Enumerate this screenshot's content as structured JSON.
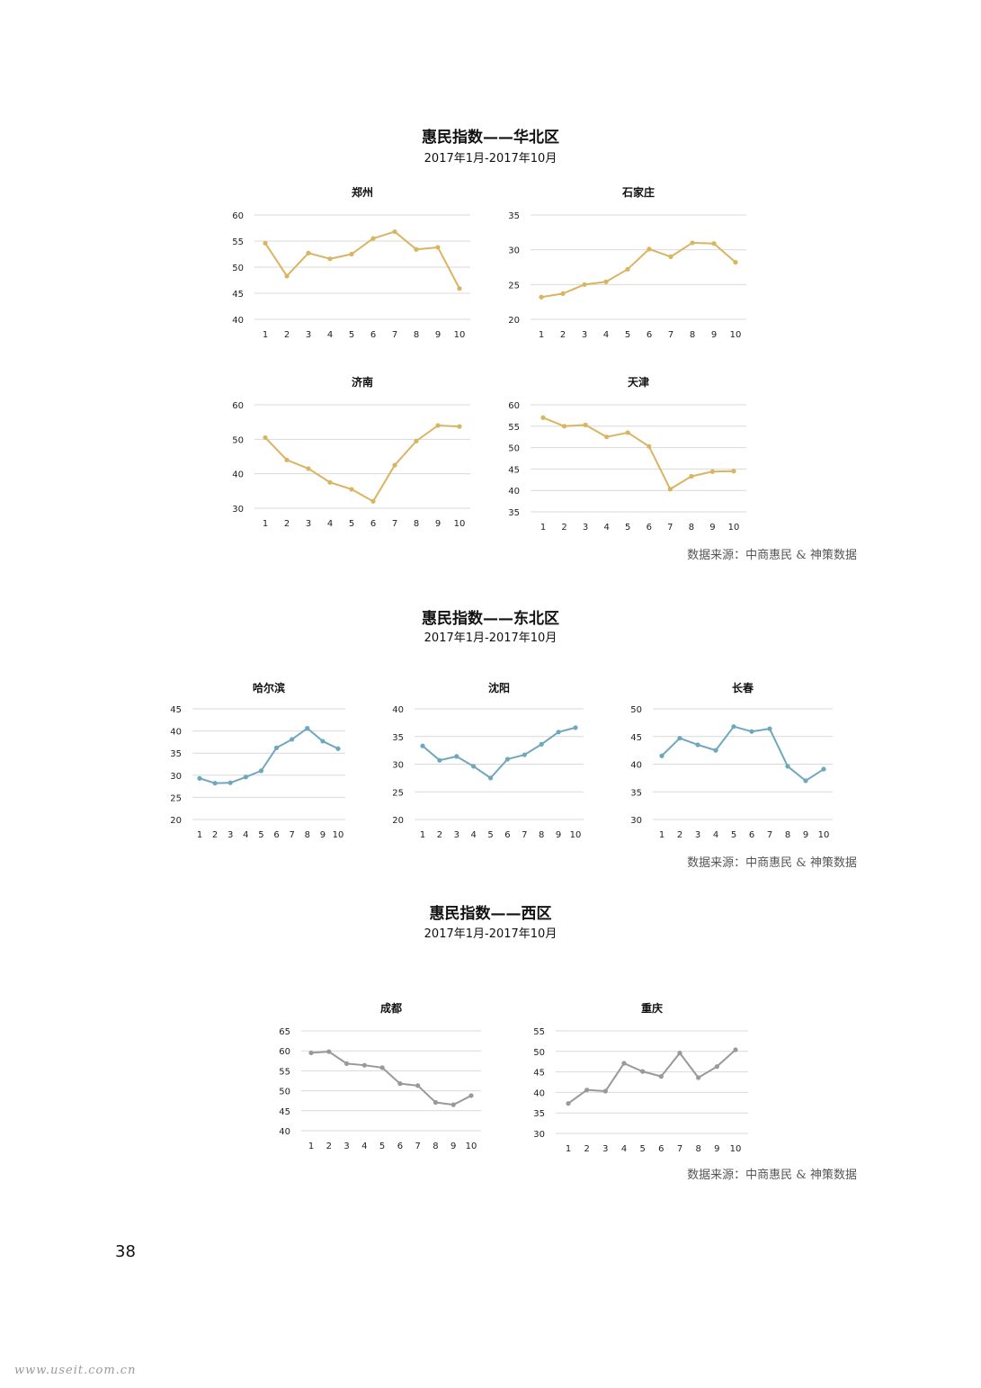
{
  "sections": [
    {
      "title": "惠民指数——华北区",
      "subtitle": "2017年1月-2017年10月",
      "source": "数据来源：中商惠民 & 神策数据"
    },
    {
      "title": "惠民指数——东北区",
      "subtitle": "2017年1月-2017年10月",
      "source": "数据来源：中商惠民 & 神策数据"
    },
    {
      "title": "惠民指数——西区",
      "subtitle": "2017年1月-2017年10月",
      "source": "数据来源：中商惠民 & 神策数据"
    }
  ],
  "colors": {
    "north": "#D9B461",
    "northeast": "#6FA7BD",
    "west": "#999999",
    "grid": "#D9D9D9"
  },
  "page_number": "38",
  "watermark": "www.useit.com.cn",
  "chart_data": [
    {
      "type": "line",
      "title": "郑州",
      "x": [
        1,
        2,
        3,
        4,
        5,
        6,
        7,
        8,
        9,
        10
      ],
      "values": [
        54.6,
        48.3,
        52.7,
        51.6,
        52.5,
        55.5,
        56.8,
        53.4,
        53.8,
        45.9
      ],
      "ylim": [
        40,
        60
      ],
      "yticks": [
        40,
        45,
        50,
        55,
        60
      ],
      "color": "#D9B461"
    },
    {
      "type": "line",
      "title": "石家庄",
      "x": [
        1,
        2,
        3,
        4,
        5,
        6,
        7,
        8,
        9,
        10
      ],
      "values": [
        23.2,
        23.7,
        25.0,
        25.4,
        27.2,
        30.1,
        29.0,
        31.0,
        30.9,
        28.2
      ],
      "ylim": [
        20,
        35
      ],
      "yticks": [
        20,
        25,
        30,
        35
      ],
      "color": "#D9B461"
    },
    {
      "type": "line",
      "title": "济南",
      "x": [
        1,
        2,
        3,
        4,
        5,
        6,
        7,
        8,
        9,
        10
      ],
      "values": [
        50.5,
        44.0,
        41.5,
        37.5,
        35.5,
        32.0,
        42.5,
        49.5,
        54.0,
        53.7
      ],
      "ylim": [
        30,
        60
      ],
      "yticks": [
        30,
        40,
        50,
        60
      ],
      "color": "#D9B461"
    },
    {
      "type": "line",
      "title": "天津",
      "x": [
        1,
        2,
        3,
        4,
        5,
        6,
        7,
        8,
        9,
        10
      ],
      "values": [
        57.0,
        55.0,
        55.3,
        52.5,
        53.5,
        50.3,
        40.3,
        43.3,
        44.4,
        44.5
      ],
      "ylim": [
        35,
        60
      ],
      "yticks": [
        35,
        40,
        45,
        50,
        55,
        60
      ],
      "color": "#D9B461"
    },
    {
      "type": "line",
      "title": "哈尔滨",
      "x": [
        1,
        2,
        3,
        4,
        5,
        6,
        7,
        8,
        9,
        10
      ],
      "values": [
        29.3,
        28.2,
        28.3,
        29.6,
        31.0,
        36.2,
        38.1,
        40.6,
        37.7,
        36.0
      ],
      "ylim": [
        20,
        45
      ],
      "yticks": [
        20,
        25,
        30,
        35,
        40,
        45
      ],
      "color": "#6FA7BD"
    },
    {
      "type": "line",
      "title": "沈阳",
      "x": [
        1,
        2,
        3,
        4,
        5,
        6,
        7,
        8,
        9,
        10
      ],
      "values": [
        33.3,
        30.7,
        31.4,
        29.6,
        27.5,
        30.9,
        31.7,
        33.6,
        35.8,
        36.6
      ],
      "ylim": [
        20,
        40
      ],
      "yticks": [
        20,
        25,
        30,
        35,
        40
      ],
      "color": "#6FA7BD"
    },
    {
      "type": "line",
      "title": "长春",
      "x": [
        1,
        2,
        3,
        4,
        5,
        6,
        7,
        8,
        9,
        10
      ],
      "values": [
        41.5,
        44.7,
        43.5,
        42.5,
        46.8,
        45.9,
        46.4,
        39.6,
        37.0,
        39.1
      ],
      "ylim": [
        30,
        50
      ],
      "yticks": [
        30,
        35,
        40,
        45,
        50
      ],
      "color": "#6FA7BD"
    },
    {
      "type": "line",
      "title": "成都",
      "x": [
        1,
        2,
        3,
        4,
        5,
        6,
        7,
        8,
        9,
        10
      ],
      "values": [
        59.5,
        59.8,
        56.8,
        56.4,
        55.8,
        51.8,
        51.3,
        47.1,
        46.5,
        48.8
      ],
      "ylim": [
        40,
        65
      ],
      "yticks": [
        40,
        45,
        50,
        55,
        60,
        65
      ],
      "color": "#999999"
    },
    {
      "type": "line",
      "title": "重庆",
      "x": [
        1,
        2,
        3,
        4,
        5,
        6,
        7,
        8,
        9,
        10
      ],
      "values": [
        37.3,
        40.6,
        40.3,
        47.1,
        45.1,
        43.9,
        49.6,
        43.6,
        46.3,
        50.4
      ],
      "ylim": [
        30,
        55
      ],
      "yticks": [
        30,
        35,
        40,
        45,
        50,
        55
      ],
      "color": "#999999"
    }
  ]
}
